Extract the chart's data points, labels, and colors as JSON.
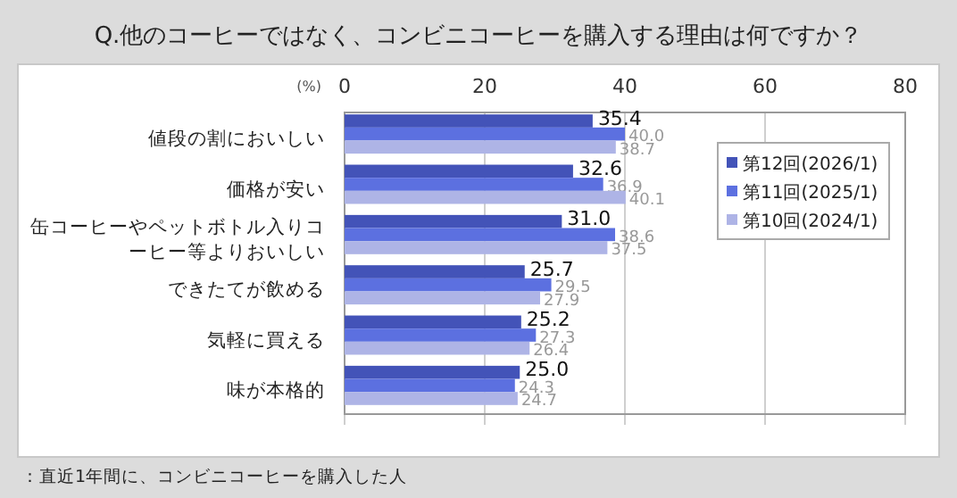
{
  "chart_data": {
    "type": "bar",
    "orientation": "horizontal",
    "title": "Q.他のコーヒーではなく、コンビニコーヒーを購入する理由は何ですか？",
    "xlabel": "(%)",
    "categories": [
      "値段の割においしい",
      "価格が安い",
      "缶コーヒーやペットボトル入りコーヒー等よりおいしい",
      "できたてが飲める",
      "気軽に買える",
      "味が本格的"
    ],
    "series": [
      {
        "name": "第12回(2026/1)",
        "color": "#4353b8",
        "values": [
          35.4,
          32.6,
          31.0,
          25.7,
          25.2,
          25.0
        ],
        "value_labels": [
          "35.4",
          "32.6",
          "31.0",
          "25.7",
          "25.2",
          "25.0"
        ]
      },
      {
        "name": "第11回(2025/1)",
        "color": "#5c70e0",
        "values": [
          40.0,
          36.9,
          38.6,
          29.5,
          27.3,
          24.3
        ],
        "value_labels": [
          "40.0",
          "36.9",
          "38.6",
          "29.5",
          "27.3",
          "24.3"
        ]
      },
      {
        "name": "第10回(2024/1)",
        "color": "#aeb4e6",
        "values": [
          38.7,
          40.1,
          37.5,
          27.9,
          26.4,
          24.7
        ],
        "value_labels": [
          "38.7",
          "40.1",
          "37.5",
          "27.9",
          "26.4",
          "24.7"
        ]
      }
    ],
    "xlim": [
      0,
      80
    ],
    "xticks": [
      0,
      20,
      40,
      60,
      80
    ],
    "grid": "x",
    "legend": "top right",
    "annotations": [
      "：直近1年間に、コンビニコーヒーを購入した人"
    ]
  }
}
